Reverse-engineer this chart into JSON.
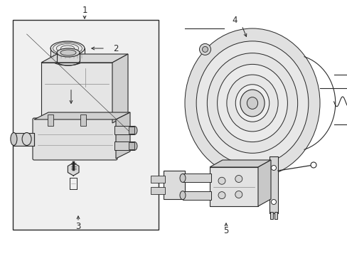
{
  "bg_color": "#ffffff",
  "line_color": "#2a2a2a",
  "box_fill": "#f2f2f2",
  "fig_width": 4.89,
  "fig_height": 3.6,
  "dpi": 100
}
